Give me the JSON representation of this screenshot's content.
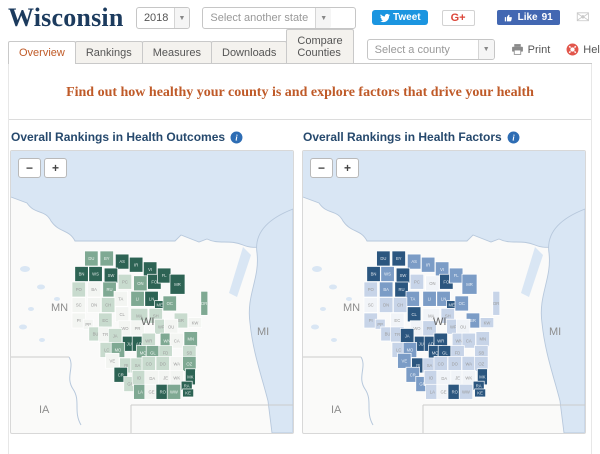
{
  "header": {
    "title": "Wisconsin",
    "year_select": "2018",
    "state_select": "Select another state",
    "tweet_label": "Tweet",
    "gplus_label": "G+",
    "like_label": "Like",
    "like_count": "91"
  },
  "tabs": {
    "items": [
      {
        "label": "Overview",
        "active": true
      },
      {
        "label": "Rankings",
        "active": false
      },
      {
        "label": "Measures",
        "active": false
      },
      {
        "label": "Downloads",
        "active": false
      },
      {
        "label": "Compare Counties",
        "active": false
      }
    ],
    "county_select": "Select a county",
    "print_label": "Print",
    "help_label": "Help"
  },
  "headline": "Find out how healthy your county is and explore factors that drive your health",
  "maps": {
    "outcomes": {
      "title": "Overall Rankings in Health Outcomes"
    },
    "factors": {
      "title": "Overall Rankings in Health Factors"
    },
    "zoom_out": "−",
    "zoom_in": "+",
    "state_labels": {
      "mn": "MN",
      "ia": "IA",
      "mi": "MI",
      "wi": "WI"
    },
    "colors": {
      "water": "#d9e6f4",
      "shore": "#b7c8dc",
      "boundary": "#cccccc",
      "label": "#8e8e8e"
    },
    "palettes": {
      "outcomes": {
        "d": "#2d6354",
        "m": "#7fa993",
        "l": "#c8dbce",
        "w": "#f3f5f2"
      },
      "factors": {
        "d": "#2b567f",
        "m": "#7b9cc6",
        "l": "#c7d4e8",
        "w": "#f1f4f8"
      }
    },
    "counties": [
      {
        "a": "DU",
        "c": 0.9,
        "r": 0,
        "o": "m",
        "f": "d"
      },
      {
        "a": "BY",
        "c": 2.0,
        "r": 0,
        "o": "m",
        "f": "d"
      },
      {
        "a": "AS",
        "c": 3.1,
        "r": 0.2,
        "o": "d",
        "f": "m"
      },
      {
        "a": "IR",
        "c": 4.1,
        "r": 0.4,
        "o": "d",
        "f": "m"
      },
      {
        "a": "VI",
        "c": 5.1,
        "r": 0.7,
        "o": "d",
        "f": "m"
      },
      {
        "a": "BN",
        "c": 0.2,
        "r": 1.0,
        "o": "d",
        "f": "d"
      },
      {
        "a": "WS",
        "c": 1.2,
        "r": 1.0,
        "o": "d",
        "f": "m"
      },
      {
        "a": "SW",
        "c": 2.3,
        "r": 1.1,
        "o": "d",
        "f": "d"
      },
      {
        "a": "PC",
        "c": 3.3,
        "r": 1.5,
        "o": "l",
        "f": "l"
      },
      {
        "a": "ON",
        "c": 4.4,
        "r": 1.6,
        "o": "m",
        "f": "w"
      },
      {
        "a": "FO",
        "c": 5.4,
        "r": 1.5,
        "o": "d",
        "f": "d"
      },
      {
        "a": "FL",
        "c": 6.1,
        "r": 1.1,
        "o": "d",
        "f": "m"
      },
      {
        "a": "MR",
        "c": 7.0,
        "r": 1.5,
        "o": "d",
        "f": "m",
        "w": 15,
        "h": 20
      },
      {
        "a": "PO",
        "c": 0.0,
        "r": 2.0,
        "o": "l",
        "f": "l"
      },
      {
        "a": "BA",
        "c": 1.1,
        "r": 2.0,
        "o": "w",
        "f": "m"
      },
      {
        "a": "RU",
        "c": 2.2,
        "r": 2.0,
        "o": "m",
        "f": "d"
      },
      {
        "a": "TA",
        "c": 3.0,
        "r": 2.6,
        "o": "w",
        "f": "m"
      },
      {
        "a": "LI",
        "c": 4.2,
        "r": 2.6,
        "o": "m",
        "f": "m"
      },
      {
        "a": "LN",
        "c": 5.2,
        "r": 2.6,
        "o": "d",
        "f": "m"
      },
      {
        "a": "ME",
        "c": 5.9,
        "r": 3.2,
        "o": "d",
        "f": "d",
        "w": 10,
        "h": 9
      },
      {
        "a": "OC",
        "c": 6.5,
        "r": 2.9,
        "o": "m",
        "f": "m"
      },
      {
        "a": "DR",
        "c": 9.2,
        "r": 2.6,
        "o": "m",
        "f": "l",
        "w": 7,
        "h": 24
      },
      {
        "a": "SC",
        "c": 0.0,
        "r": 3.0,
        "o": "w",
        "f": "w"
      },
      {
        "a": "DN",
        "c": 1.1,
        "r": 3.0,
        "o": "w",
        "f": "l"
      },
      {
        "a": "CH",
        "c": 2.1,
        "r": 3.0,
        "o": "l",
        "f": "l"
      },
      {
        "a": "CL",
        "c": 3.1,
        "r": 3.6,
        "o": "w",
        "f": "d"
      },
      {
        "a": "MA",
        "c": 4.2,
        "r": 3.7,
        "o": "l",
        "f": "w",
        "w": 17
      },
      {
        "a": "SH",
        "c": 5.5,
        "r": 3.7,
        "o": "l",
        "f": "l"
      },
      {
        "a": "BR",
        "c": 7.3,
        "r": 4.0,
        "o": "l",
        "f": "m"
      },
      {
        "a": "KW",
        "c": 8.3,
        "r": 4.3,
        "o": "w",
        "f": "l",
        "h": 10
      },
      {
        "a": "PI",
        "c": 0.0,
        "r": 4.0,
        "o": "w",
        "f": "l"
      },
      {
        "a": "PP",
        "c": 0.8,
        "r": 4.4,
        "o": "w",
        "f": "l",
        "w": 10,
        "h": 10
      },
      {
        "a": "EC",
        "c": 1.9,
        "r": 4.0,
        "o": "l",
        "f": "w"
      },
      {
        "a": "WO",
        "c": 3.3,
        "r": 4.5,
        "o": "w",
        "f": "w"
      },
      {
        "a": "PR",
        "c": 4.2,
        "r": 4.5,
        "o": "w",
        "f": "l"
      },
      {
        "a": "WP",
        "c": 5.9,
        "r": 4.4,
        "o": "l",
        "f": "l"
      },
      {
        "a": "OU",
        "c": 6.6,
        "r": 4.4,
        "o": "w",
        "f": "w"
      },
      {
        "a": "BU",
        "c": 1.2,
        "r": 4.9,
        "o": "l",
        "f": "l",
        "h": 14
      },
      {
        "a": "TR",
        "c": 1.9,
        "r": 4.9,
        "o": "w",
        "f": "l"
      },
      {
        "a": "JA",
        "c": 2.6,
        "r": 5.0,
        "o": "l",
        "f": "d"
      },
      {
        "a": "JU",
        "c": 3.6,
        "r": 5.5,
        "o": "d",
        "f": "d"
      },
      {
        "a": "AD",
        "c": 4.3,
        "r": 5.5,
        "o": "d",
        "f": "d"
      },
      {
        "a": "WR",
        "c": 5.0,
        "r": 5.3,
        "o": "l",
        "f": "d"
      },
      {
        "a": "WN",
        "c": 6.3,
        "r": 5.3,
        "o": "m",
        "f": "l"
      },
      {
        "a": "CA",
        "c": 7.0,
        "r": 5.3,
        "o": "w",
        "f": "l"
      },
      {
        "a": "MN",
        "c": 8.0,
        "r": 5.2,
        "o": "m",
        "f": "l"
      },
      {
        "a": "LC",
        "c": 2.0,
        "r": 5.9,
        "o": "l",
        "f": "l"
      },
      {
        "a": "MO",
        "c": 2.8,
        "r": 5.9,
        "o": "m",
        "f": "m"
      },
      {
        "a": "MQ",
        "c": 4.6,
        "r": 6.1,
        "o": "m",
        "f": "d"
      },
      {
        "a": "GL",
        "c": 5.3,
        "r": 6.1,
        "o": "m",
        "f": "d"
      },
      {
        "a": "FD",
        "c": 6.2,
        "r": 6.1,
        "o": "l",
        "f": "l"
      },
      {
        "a": "SB",
        "c": 7.9,
        "r": 6.1,
        "o": "l",
        "f": "l"
      },
      {
        "a": "VE",
        "c": 2.4,
        "r": 6.6,
        "o": "w",
        "f": "m"
      },
      {
        "a": "RI",
        "c": 3.4,
        "r": 6.9,
        "o": "l",
        "f": "d"
      },
      {
        "a": "SA",
        "c": 4.2,
        "r": 6.9,
        "o": "l",
        "f": "l"
      },
      {
        "a": "CO",
        "c": 5.0,
        "r": 6.8,
        "o": "l",
        "f": "l"
      },
      {
        "a": "DO",
        "c": 6.0,
        "r": 6.8,
        "o": "l",
        "f": "l"
      },
      {
        "a": "WA",
        "c": 7.0,
        "r": 6.8,
        "o": "w",
        "f": "l"
      },
      {
        "a": "OZ",
        "c": 7.9,
        "r": 6.8,
        "o": "m",
        "f": "l"
      },
      {
        "a": "CR",
        "c": 3.0,
        "r": 7.5,
        "o": "d",
        "f": "m"
      },
      {
        "a": "GR",
        "c": 3.7,
        "r": 8.1,
        "o": "l",
        "f": "m"
      },
      {
        "a": "IO",
        "c": 4.3,
        "r": 7.7,
        "o": "l",
        "f": "l"
      },
      {
        "a": "DA",
        "c": 5.2,
        "r": 7.7,
        "o": "w",
        "f": "w",
        "w": 15,
        "h": 16
      },
      {
        "a": "JE",
        "c": 6.2,
        "r": 7.7,
        "o": "w",
        "f": "w"
      },
      {
        "a": "WK",
        "c": 7.0,
        "r": 7.7,
        "o": "w",
        "f": "w"
      },
      {
        "a": "MK",
        "c": 8.1,
        "r": 7.6,
        "o": "d",
        "f": "d",
        "w": 10,
        "h": 16
      },
      {
        "a": "LA",
        "c": 4.4,
        "r": 8.6,
        "o": "m",
        "f": "l"
      },
      {
        "a": "GE",
        "c": 5.2,
        "r": 8.6,
        "o": "w",
        "f": "w"
      },
      {
        "a": "RO",
        "c": 6.0,
        "r": 8.6,
        "o": "d",
        "f": "d"
      },
      {
        "a": "WW",
        "c": 6.8,
        "r": 8.6,
        "o": "m",
        "f": "l"
      },
      {
        "a": "RA",
        "c": 7.8,
        "r": 8.4,
        "o": "d",
        "f": "d",
        "w": 11,
        "h": 9
      },
      {
        "a": "KE",
        "c": 7.9,
        "r": 8.9,
        "o": "d",
        "f": "d",
        "w": 11,
        "h": 8
      }
    ]
  }
}
